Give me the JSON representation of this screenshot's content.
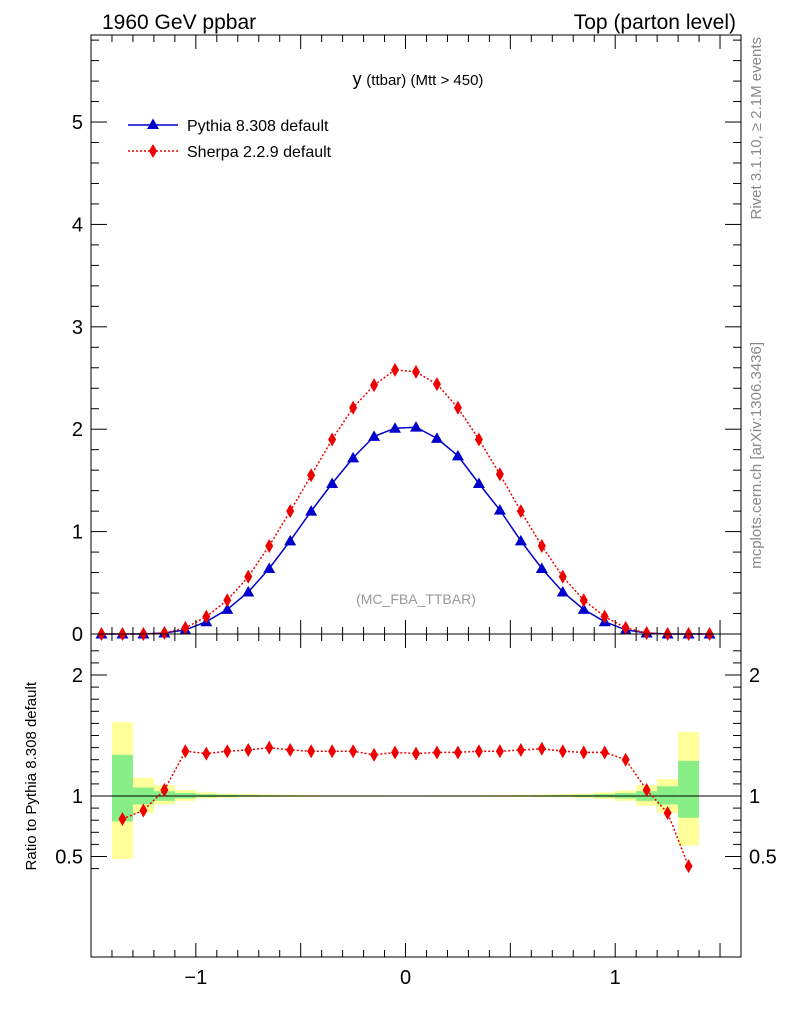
{
  "header": {
    "left": "1960 GeV ppbar",
    "right": "Top (parton level)"
  },
  "side": {
    "rivet": "Rivet 3.1.10, ≥ 2.1M events",
    "mcplots": "mcplots.cern.ch [arXiv:1306.3436]"
  },
  "chart_data": [
    {
      "type": "line",
      "title": "y (ttbar) (Mtt > 450)",
      "title_main": "y",
      "title_rest": "(ttbar) (Mtt > 450)",
      "watermark": "(MC_FBA_TTBAR)",
      "xlim": [
        -1.5,
        1.6
      ],
      "ylim": [
        0,
        5.85
      ],
      "yticks": [
        0,
        1,
        2,
        3,
        4,
        5
      ],
      "ytick_labels": [
        "0",
        "1",
        "2",
        "3",
        "4",
        "5"
      ],
      "legend_placement": "top-left",
      "x": [
        -1.45,
        -1.35,
        -1.25,
        -1.15,
        -1.05,
        -0.95,
        -0.85,
        -0.75,
        -0.65,
        -0.55,
        -0.45,
        -0.35,
        -0.25,
        -0.15,
        -0.05,
        0.05,
        0.15,
        0.25,
        0.35,
        0.45,
        0.55,
        0.65,
        0.75,
        0.85,
        0.95,
        1.05,
        1.15,
        1.25,
        1.35,
        1.45
      ],
      "series": [
        {
          "name": "Pythia 8.308 default",
          "color": "#0000cc",
          "line": "solid",
          "marker": "triangle",
          "values": [
            0.0,
            0.0,
            0.0,
            0.01,
            0.04,
            0.12,
            0.24,
            0.41,
            0.64,
            0.91,
            1.2,
            1.47,
            1.72,
            1.93,
            2.01,
            2.02,
            1.91,
            1.74,
            1.47,
            1.21,
            0.91,
            0.64,
            0.41,
            0.24,
            0.12,
            0.04,
            0.01,
            0.0,
            0.0,
            0.0
          ]
        },
        {
          "name": "Sherpa 2.2.9 default",
          "color": "#ee0000",
          "line": "dotted",
          "marker": "diamond",
          "values": [
            0.0,
            0.0,
            0.0,
            0.01,
            0.06,
            0.17,
            0.33,
            0.56,
            0.86,
            1.2,
            1.55,
            1.9,
            2.21,
            2.43,
            2.58,
            2.56,
            2.44,
            2.21,
            1.9,
            1.56,
            1.2,
            0.86,
            0.56,
            0.33,
            0.17,
            0.06,
            0.01,
            0.0,
            0.0,
            0.0
          ]
        }
      ]
    },
    {
      "type": "line",
      "ylabel": "Ratio to Pythia 8.308 default",
      "xlim": [
        -1.5,
        1.6
      ],
      "ylim": [
        0.35,
        2.3
      ],
      "yticks": [
        0.5,
        1,
        2
      ],
      "ytick_labels": [
        "0.5",
        "1",
        "2"
      ],
      "xticks": [
        -1,
        0,
        1
      ],
      "xtick_labels": [
        "−1",
        "0",
        "1"
      ],
      "band_x": [
        -1.4,
        -1.3,
        -1.2,
        -1.1,
        -1.0,
        -0.9,
        -0.8,
        -0.7,
        -0.6,
        -0.5,
        -0.4,
        -0.3,
        -0.2,
        -0.1,
        0.0,
        0.1,
        0.2,
        0.3,
        0.4,
        0.5,
        0.6,
        0.7,
        0.8,
        0.9,
        1.0,
        1.1,
        1.2,
        1.3,
        1.4
      ],
      "band_yellow": [
        [
          0.48,
          1.61
        ],
        [
          0.86,
          1.15
        ],
        [
          0.93,
          1.09
        ],
        [
          0.96,
          1.05
        ],
        [
          0.98,
          1.03
        ],
        [
          0.985,
          1.02
        ],
        [
          0.99,
          1.015
        ],
        [
          0.99,
          1.012
        ],
        [
          0.992,
          1.01
        ],
        [
          0.993,
          1.008
        ],
        [
          0.994,
          1.007
        ],
        [
          0.995,
          1.006
        ],
        [
          0.995,
          1.006
        ],
        [
          0.996,
          1.005
        ],
        [
          0.996,
          1.005
        ],
        [
          0.995,
          1.006
        ],
        [
          0.995,
          1.006
        ],
        [
          0.994,
          1.007
        ],
        [
          0.993,
          1.008
        ],
        [
          0.992,
          1.01
        ],
        [
          0.99,
          1.012
        ],
        [
          0.99,
          1.015
        ],
        [
          0.985,
          1.02
        ],
        [
          0.975,
          1.03
        ],
        [
          0.96,
          1.045
        ],
        [
          0.92,
          1.09
        ],
        [
          0.86,
          1.14
        ],
        [
          0.59,
          1.53
        ]
      ],
      "band_green": [
        [
          0.79,
          1.34
        ],
        [
          0.93,
          1.07
        ],
        [
          0.96,
          1.04
        ],
        [
          0.98,
          1.025
        ],
        [
          0.99,
          1.015
        ],
        [
          0.993,
          1.01
        ],
        [
          0.995,
          1.008
        ],
        [
          0.995,
          1.006
        ],
        [
          0.996,
          1.005
        ],
        [
          0.996,
          1.004
        ],
        [
          0.997,
          1.004
        ],
        [
          0.997,
          1.003
        ],
        [
          0.997,
          1.003
        ],
        [
          0.998,
          1.003
        ],
        [
          0.998,
          1.003
        ],
        [
          0.997,
          1.003
        ],
        [
          0.997,
          1.003
        ],
        [
          0.997,
          1.004
        ],
        [
          0.996,
          1.004
        ],
        [
          0.996,
          1.005
        ],
        [
          0.995,
          1.006
        ],
        [
          0.995,
          1.008
        ],
        [
          0.993,
          1.01
        ],
        [
          0.988,
          1.015
        ],
        [
          0.98,
          1.025
        ],
        [
          0.96,
          1.04
        ],
        [
          0.93,
          1.08
        ],
        [
          0.82,
          1.29
        ]
      ],
      "series": [
        {
          "name": "Sherpa 2.2.9 default",
          "color": "#ee0000",
          "line": "dotted",
          "marker": "diamond",
          "x": [
            -1.35,
            -1.25,
            -1.15,
            -1.05,
            -0.95,
            -0.85,
            -0.75,
            -0.65,
            -0.55,
            -0.45,
            -0.35,
            -0.25,
            -0.15,
            -0.05,
            0.05,
            0.15,
            0.25,
            0.35,
            0.45,
            0.55,
            0.65,
            0.75,
            0.85,
            0.95,
            1.05,
            1.15,
            1.25,
            1.35
          ],
          "values": [
            0.81,
            0.88,
            1.05,
            1.37,
            1.35,
            1.37,
            1.38,
            1.4,
            1.38,
            1.37,
            1.37,
            1.37,
            1.34,
            1.36,
            1.35,
            1.36,
            1.36,
            1.37,
            1.37,
            1.38,
            1.39,
            1.37,
            1.36,
            1.36,
            1.3,
            1.05,
            0.86,
            0.42
          ]
        }
      ]
    }
  ]
}
